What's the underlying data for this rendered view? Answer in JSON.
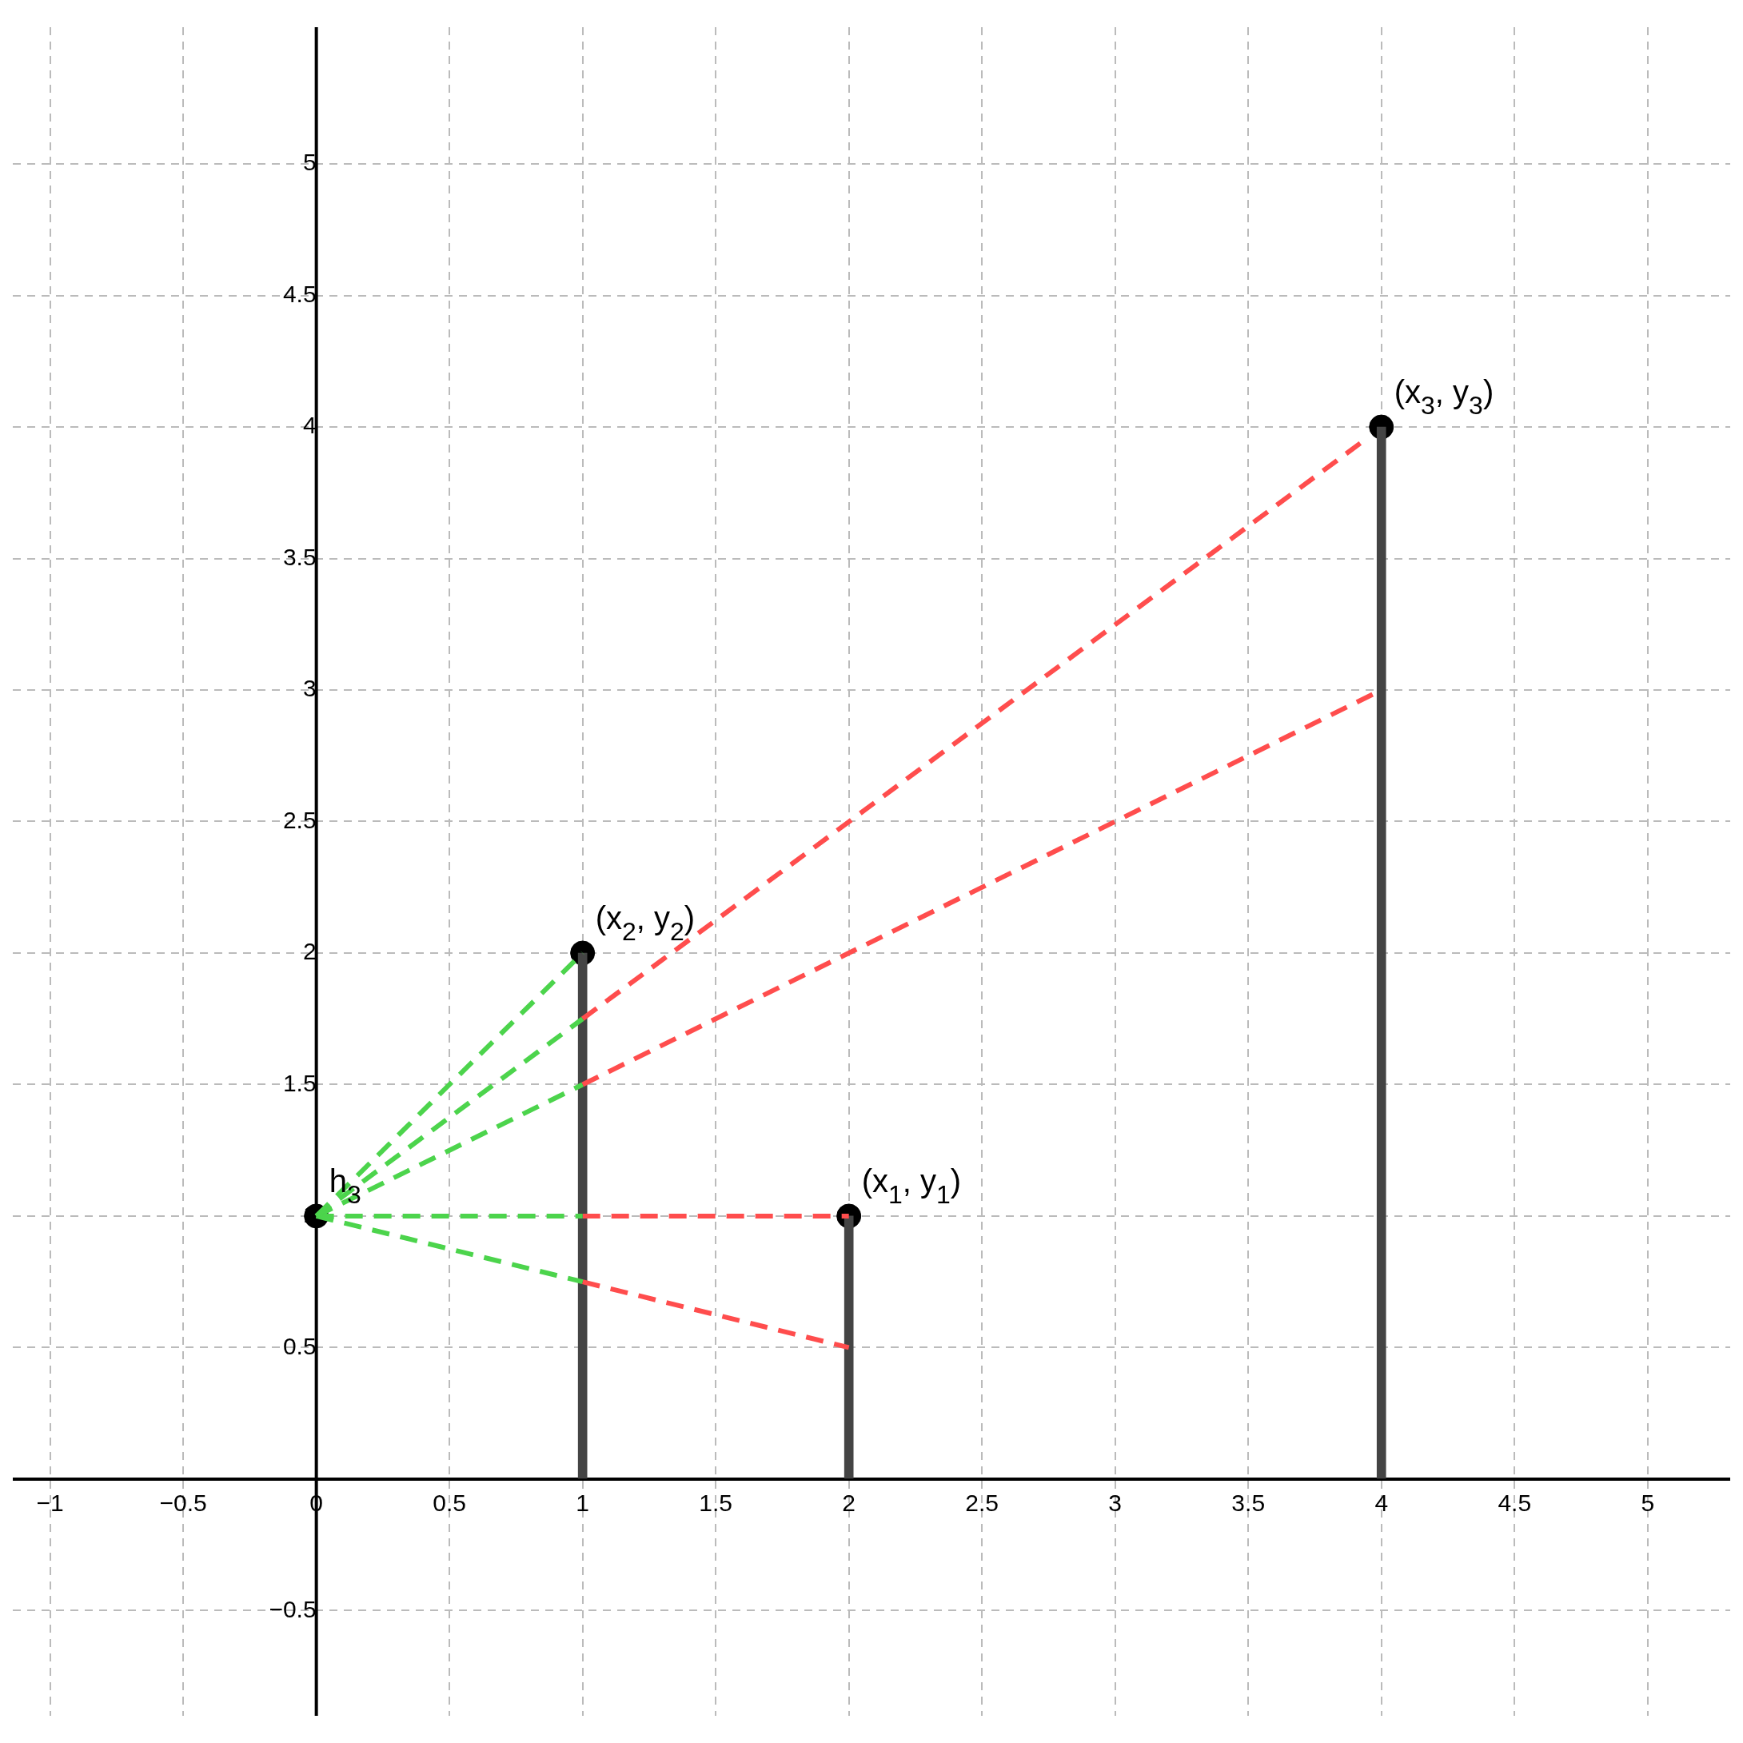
{
  "chart_data": {
    "type": "line",
    "xlim": [
      -1.14,
      5.31
    ],
    "ylim": [
      -0.9,
      5.52
    ],
    "xticks": [
      {
        "value": -1,
        "label": "−1"
      },
      {
        "value": -0.5,
        "label": "−0.5"
      },
      0,
      0.5,
      1,
      1.5,
      2,
      2.5,
      3,
      3.5,
      4,
      4.5,
      5
    ],
    "yticks": [
      {
        "value": -0.5,
        "label": "−0.5"
      },
      {
        "value": 0,
        "label": null
      },
      0.5,
      1,
      1.5,
      2,
      2.5,
      3,
      3.5,
      4,
      4.5,
      5
    ],
    "grid": true,
    "legend": false,
    "series": [
      {
        "type": "bar",
        "color": "#444444",
        "x": [
          1,
          2,
          4
        ],
        "values": [
          2,
          1,
          4
        ]
      },
      {
        "color": "#4cd44c",
        "line_style": "dashed",
        "marker": "none",
        "x": [
          0,
          1
        ],
        "values": [
          1,
          2
        ]
      },
      {
        "color": "#4cd44c",
        "line_style": "dashed",
        "marker": "none",
        "x": [
          0,
          1
        ],
        "values": [
          1,
          1.75
        ]
      },
      {
        "color": "#4cd44c",
        "line_style": "dashed",
        "marker": "none",
        "x": [
          0,
          1
        ],
        "values": [
          1,
          1.5
        ]
      },
      {
        "color": "#4cd44c",
        "line_style": "dashed",
        "marker": "none",
        "x": [
          0,
          1
        ],
        "values": [
          1,
          1
        ]
      },
      {
        "color": "#4cd44c",
        "line_style": "dashed",
        "marker": "none",
        "x": [
          0,
          1
        ],
        "values": [
          1,
          0.75
        ]
      },
      {
        "color": "#ff4d4d",
        "line_style": "dashed",
        "marker": "none",
        "x": [
          1,
          3.95
        ],
        "values": [
          1.75,
          3.96
        ]
      },
      {
        "color": "#ff4d4d",
        "line_style": "dashed",
        "marker": "none",
        "x": [
          1,
          4
        ],
        "values": [
          1.5,
          3
        ]
      },
      {
        "color": "#ff4d4d",
        "line_style": "dashed",
        "marker": "none",
        "x": [
          1,
          2
        ],
        "values": [
          1,
          1
        ]
      },
      {
        "color": "#ff4d4d",
        "line_style": "dashed",
        "marker": "none",
        "x": [
          1,
          2
        ],
        "values": [
          0.75,
          0.5
        ]
      },
      {
        "type": "scatter",
        "color": "#000000",
        "marker": "circle",
        "x": [
          0,
          1,
          2,
          4
        ],
        "values": [
          1,
          2,
          1,
          4
        ]
      }
    ],
    "annotations": [
      {
        "text": "h$_{3}$",
        "x": 0,
        "y": 1
      },
      {
        "text": "(x$_{1}$, y$_{1}$)",
        "x": 2,
        "y": 1
      },
      {
        "text": "(x$_{2}$, y$_{2}$)",
        "x": 1,
        "y": 2
      },
      {
        "text": "(x$_{3}$, y$_{3}$)",
        "x": 4,
        "y": 4
      }
    ]
  }
}
